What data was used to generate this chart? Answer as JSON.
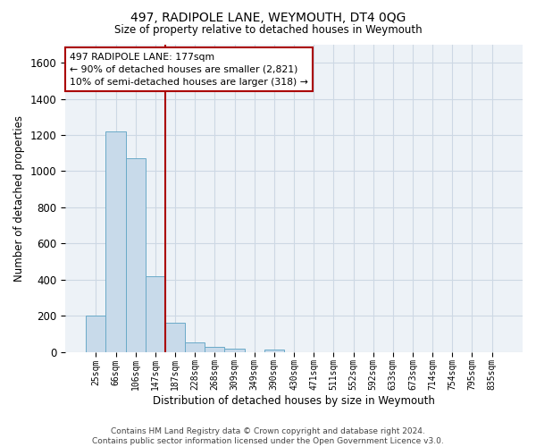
{
  "title": "497, RADIPOLE LANE, WEYMOUTH, DT4 0QG",
  "subtitle": "Size of property relative to detached houses in Weymouth",
  "xlabel": "Distribution of detached houses by size in Weymouth",
  "ylabel": "Number of detached properties",
  "bar_color": "#c8daea",
  "bar_edge_color": "#6aaac8",
  "vline_color": "#aa0000",
  "annotation_text": "497 RADIPOLE LANE: 177sqm\n← 90% of detached houses are smaller (2,821)\n10% of semi-detached houses are larger (318) →",
  "annotation_box_color": "#ffffff",
  "annotation_box_edge": "#aa0000",
  "categories": [
    "25sqm",
    "66sqm",
    "106sqm",
    "147sqm",
    "187sqm",
    "228sqm",
    "268sqm",
    "309sqm",
    "349sqm",
    "390sqm",
    "430sqm",
    "471sqm",
    "511sqm",
    "552sqm",
    "592sqm",
    "633sqm",
    "673sqm",
    "714sqm",
    "754sqm",
    "795sqm",
    "835sqm"
  ],
  "values": [
    200,
    1220,
    1070,
    420,
    160,
    52,
    26,
    16,
    0,
    14,
    0,
    0,
    0,
    0,
    0,
    0,
    0,
    0,
    0,
    0,
    0
  ],
  "ylim": [
    0,
    1700
  ],
  "yticks": [
    0,
    200,
    400,
    600,
    800,
    1000,
    1200,
    1400,
    1600
  ],
  "footnote": "Contains HM Land Registry data © Crown copyright and database right 2024.\nContains public sector information licensed under the Open Government Licence v3.0.",
  "grid_color": "#cdd8e4",
  "background_color": "#edf2f7"
}
